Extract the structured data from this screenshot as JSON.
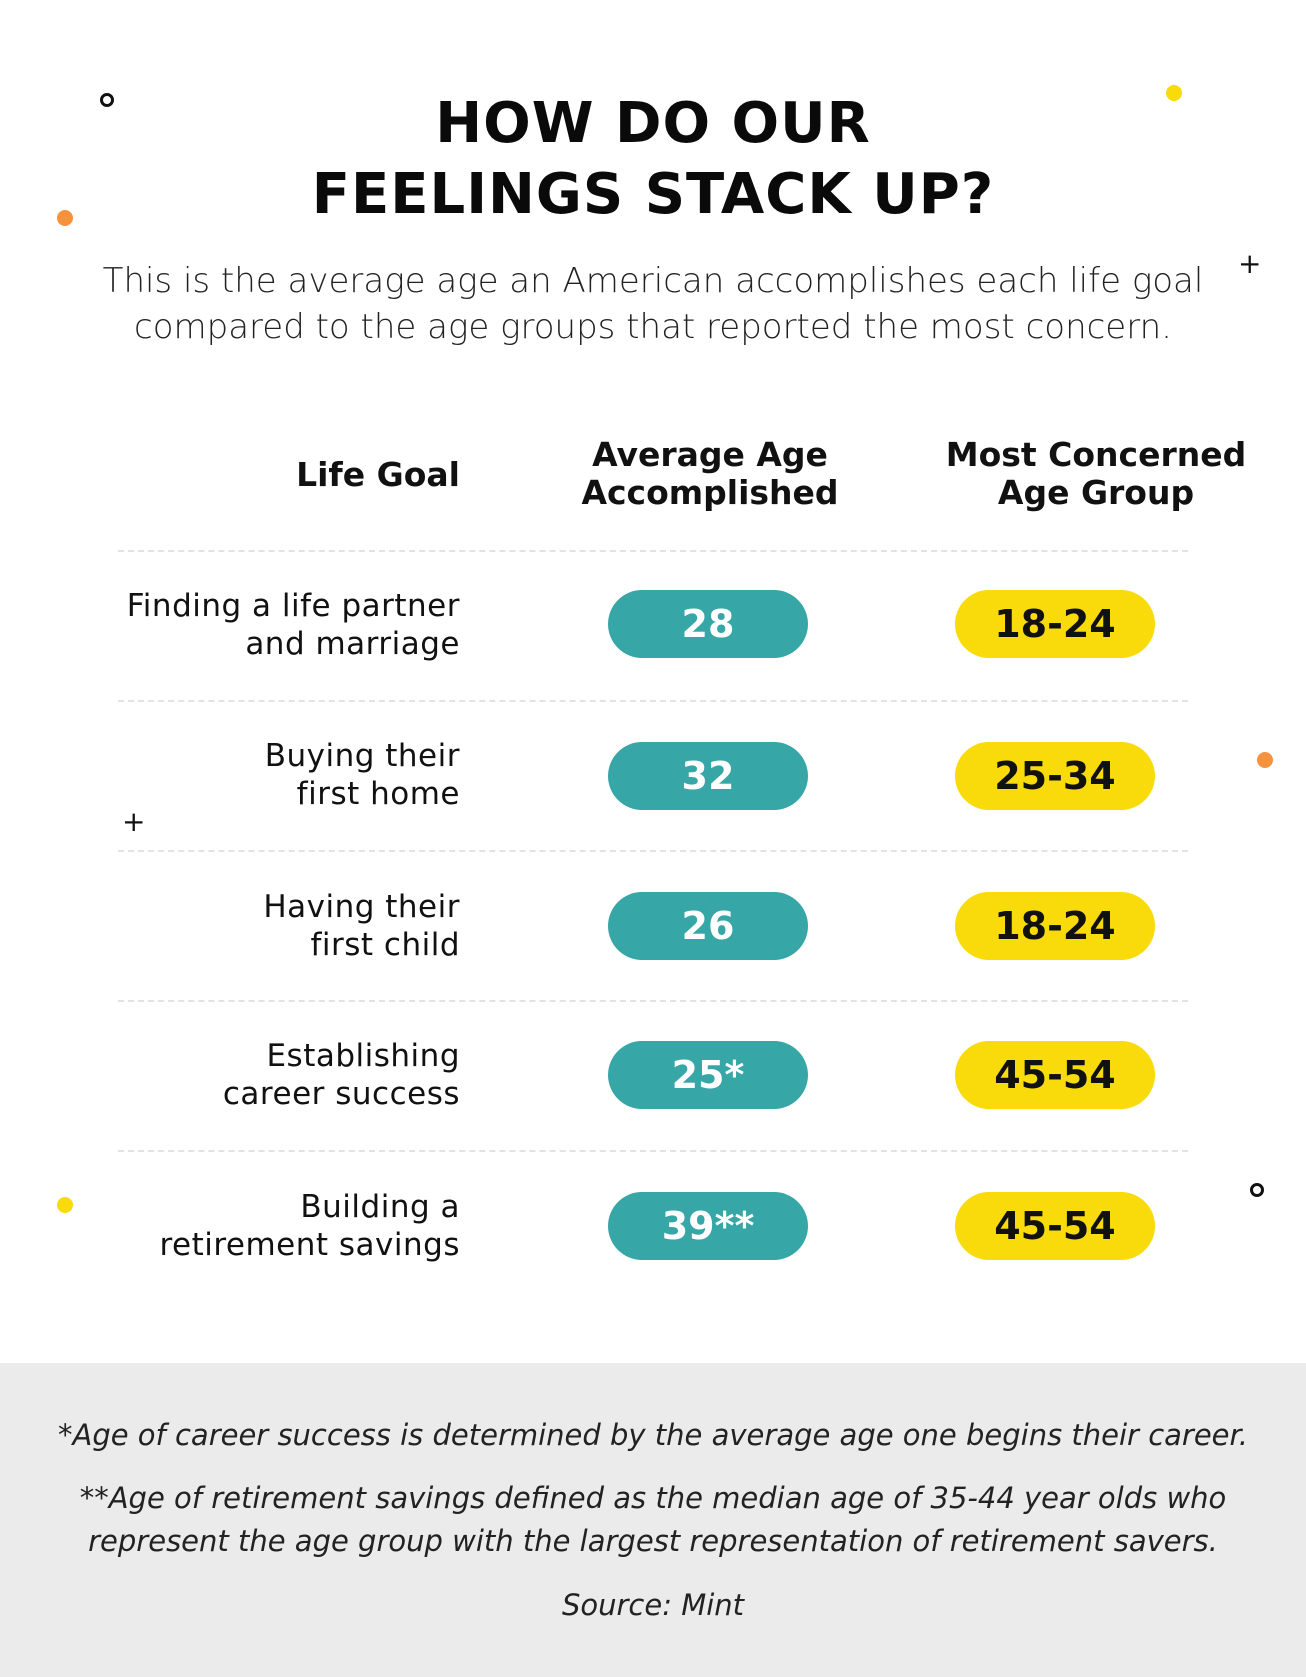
{
  "title": {
    "line1": "HOW DO OUR",
    "line2": "FEELINGS STACK UP?"
  },
  "intro": "This is the average age an American accomplishes each life goal compared to the age groups that reported the most concern.",
  "table": {
    "headers": {
      "goal": "Life Goal",
      "avg_line1": "Average Age",
      "avg_line2": "Accomplished",
      "concern_line1": "Most Concerned",
      "concern_line2": "Age Group"
    },
    "rows": [
      {
        "goal_line1": "Finding a life partner",
        "goal_line2": "and marriage",
        "avg_age": "28",
        "concern_group": "18-24"
      },
      {
        "goal_line1": "Buying their",
        "goal_line2": "first home",
        "avg_age": "32",
        "concern_group": "25-34"
      },
      {
        "goal_line1": "Having their",
        "goal_line2": "first child",
        "avg_age": "26",
        "concern_group": "18-24"
      },
      {
        "goal_line1": "Establishing",
        "goal_line2": "career success",
        "avg_age": "25*",
        "concern_group": "45-54"
      },
      {
        "goal_line1": "Building a",
        "goal_line2": "retirement savings",
        "avg_age": "39**",
        "concern_group": "45-54"
      }
    ]
  },
  "footnotes": {
    "note1": "*Age of career success is determined by the average age one begins their career.",
    "note2": "**Age of retirement savings defined as the median age of 35-44 year olds who represent the age group with the largest representation of retirement savers.",
    "source": "Source: Mint"
  },
  "colors": {
    "teal": "#37a6a6",
    "yellow": "#f9da0a",
    "orange": "#f5923e",
    "footer_bg": "#ebebeb"
  },
  "decorations": [
    "ring-icon",
    "dot-icon",
    "plus-icon"
  ]
}
